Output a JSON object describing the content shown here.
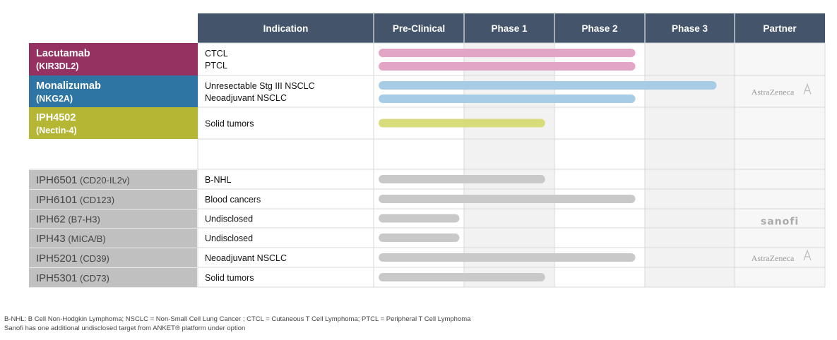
{
  "colors": {
    "header_bg": "#44546a",
    "header_text": "#ffffff",
    "lacutamab": "#963262",
    "monalizumab": "#2e75a3",
    "iph4502": "#b4b634",
    "gray_label_bg": "#c0c0c0",
    "gray_label_text": "#444444",
    "bar_pink": "#e3a5c6",
    "bar_blue": "#a7cde6",
    "bar_yellow": "#d9dc7b",
    "bar_gray": "#c9c9c9",
    "shade": "#f2f2f2",
    "grid": "#d9d9d9",
    "partner_text": "#999999"
  },
  "chart_data": {
    "type": "table",
    "title": "",
    "columns": [
      "Indication",
      "Pre-Clinical",
      "Phase 1",
      "Phase 2",
      "Phase 3",
      "Partner"
    ],
    "stage_scale": "0 = start of Pre-Clinical, 4 = end of Phase 3",
    "rows": [
      {
        "id": "lacutamab",
        "group": "primary",
        "name": "Lacutamab",
        "target": "(KIR3DL2)",
        "indications": [
          "CTCL",
          "PTCL"
        ],
        "bars": [
          {
            "end": 2.9,
            "color_key": "bar_pink"
          },
          {
            "end": 2.9,
            "color_key": "bar_pink"
          }
        ],
        "partner": ""
      },
      {
        "id": "monalizumab",
        "group": "primary",
        "name": "Monalizumab",
        "target": "(NKG2A)",
        "indications": [
          "Unresectable Stg III NSCLC",
          "Neoadjuvant NSCLC"
        ],
        "bars": [
          {
            "end": 3.8,
            "color_key": "bar_blue"
          },
          {
            "end": 2.9,
            "color_key": "bar_blue"
          }
        ],
        "partner": "AstraZeneca"
      },
      {
        "id": "iph4502",
        "group": "primary",
        "name": "IPH4502",
        "target": "(Nectin-4)",
        "indications": [
          "Solid tumors"
        ],
        "bars": [
          {
            "end": 1.9,
            "color_key": "bar_yellow"
          }
        ],
        "partner": ""
      },
      {
        "id": "iph6501",
        "group": "secondary",
        "name": "IPH6501",
        "target": "(CD20-IL2v)",
        "indications": [
          "B-NHL"
        ],
        "bars": [
          {
            "end": 1.9,
            "color_key": "bar_gray"
          }
        ],
        "partner": ""
      },
      {
        "id": "iph6101",
        "group": "secondary",
        "name": "IPH6101",
        "target": "(CD123)",
        "indications": [
          "Blood cancers"
        ],
        "bars": [
          {
            "end": 2.9,
            "color_key": "bar_gray"
          }
        ],
        "partner": ""
      },
      {
        "id": "iph62",
        "group": "secondary",
        "name": "IPH62",
        "target": "(B7-H3)",
        "indications": [
          "Undisclosed"
        ],
        "bars": [
          {
            "end": 0.95,
            "color_key": "bar_gray"
          }
        ],
        "partner": "sanofi"
      },
      {
        "id": "iph43",
        "group": "secondary",
        "name": "IPH43",
        "target": "(MICA/B)",
        "indications": [
          "Undisclosed"
        ],
        "bars": [
          {
            "end": 0.95,
            "color_key": "bar_gray"
          }
        ],
        "partner": ""
      },
      {
        "id": "iph5201",
        "group": "secondary",
        "name": "IPH5201",
        "target": "(CD39)",
        "indications": [
          "Neoadjuvant NSCLC"
        ],
        "bars": [
          {
            "end": 2.9,
            "color_key": "bar_gray"
          }
        ],
        "partner": "AstraZeneca"
      },
      {
        "id": "iph5301",
        "group": "secondary",
        "name": "IPH5301",
        "target": "(CD73)",
        "indications": [
          "Solid tumors"
        ],
        "bars": [
          {
            "end": 1.9,
            "color_key": "bar_gray"
          }
        ],
        "partner": ""
      }
    ]
  },
  "footnotes": [
    "B-NHL: B Cell Non-Hodgkin Lymphoma; NSCLC =  Non-Small Cell Lung Cancer ; CTCL = Cutaneous T Cell Lymphoma; PTCL = Peripheral T Cell Lymphoma",
    "Sanofi has one additional undisclosed target from ANKET® platform under option"
  ]
}
